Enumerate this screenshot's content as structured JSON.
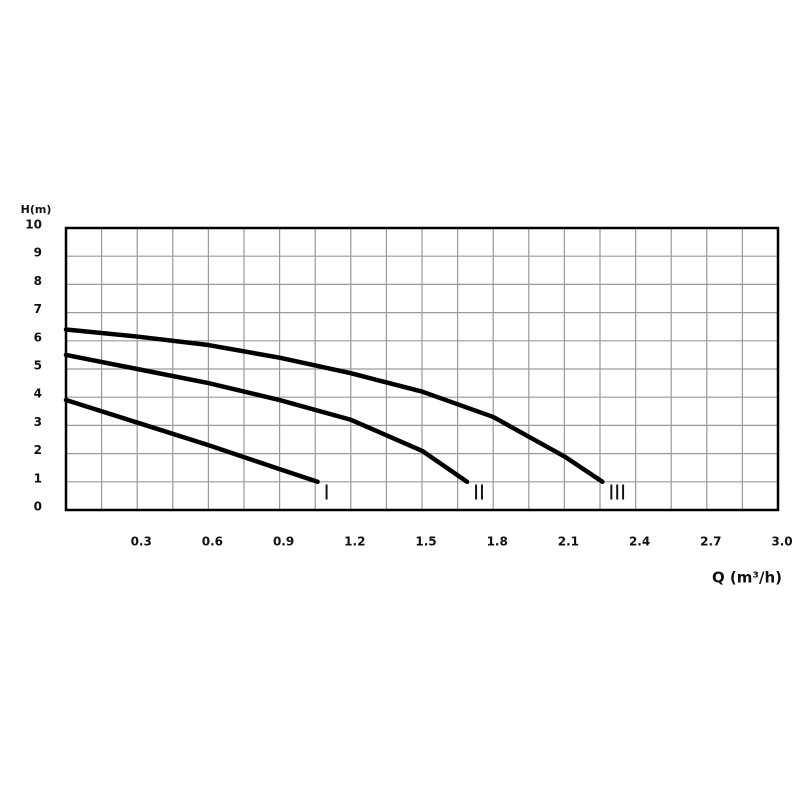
{
  "chart_data": {
    "type": "line",
    "ylabel": "H(m)",
    "xlabel": "Q (m³/h)",
    "xlim": [
      0,
      3
    ],
    "xticks": [
      0.3,
      0.6,
      0.9,
      1.2,
      1.5,
      1.8,
      2.1,
      2.4,
      2.7,
      {
        "value": 3,
        "label": "3.0"
      }
    ],
    "xminorticks": [
      0.15,
      0.45,
      0.75,
      1.05,
      1.35,
      1.65,
      1.95,
      2.25,
      2.55,
      2.85
    ],
    "ylim": [
      0,
      10
    ],
    "yticks": [
      0,
      1,
      2,
      3,
      4,
      5,
      6,
      7,
      8,
      9,
      10
    ],
    "grid": true,
    "series": [
      {
        "name": "I",
        "color": "#000000",
        "x": [
          0,
          0.3,
          0.6,
          0.9,
          1.06
        ],
        "values": [
          3.9,
          3.1,
          2.3,
          1.45,
          1.0
        ]
      },
      {
        "name": "II",
        "color": "#000000",
        "x": [
          0,
          0.3,
          0.6,
          0.9,
          1.2,
          1.5,
          1.69
        ],
        "values": [
          5.5,
          5.0,
          4.5,
          3.9,
          3.2,
          2.1,
          1.0
        ]
      },
      {
        "name": "III",
        "color": "#000000",
        "x": [
          0,
          0.3,
          0.6,
          0.9,
          1.2,
          1.5,
          1.8,
          2.1,
          2.26
        ],
        "values": [
          6.4,
          6.15,
          5.85,
          5.4,
          4.85,
          4.2,
          3.3,
          1.9,
          1.0
        ]
      }
    ]
  }
}
